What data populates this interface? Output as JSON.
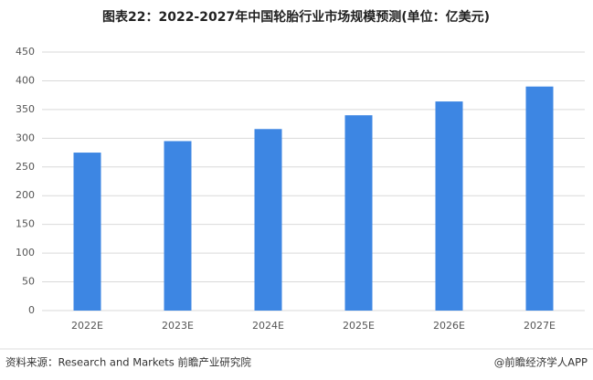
{
  "chart_data": {
    "type": "bar",
    "title": "图表22：2022-2027年中国轮胎行业市场规模预测(单位：亿美元)",
    "categories": [
      "2022E",
      "2023E",
      "2024E",
      "2025E",
      "2026E",
      "2027E"
    ],
    "values": [
      275,
      295,
      316,
      340,
      364,
      390
    ],
    "color": "#3d86e3",
    "ylim": [
      0,
      450
    ],
    "yticks": [
      0,
      50,
      100,
      150,
      200,
      250,
      300,
      350,
      400,
      450
    ],
    "grid": true,
    "source": "资料来源：Research and Markets 前瞻产业研究院",
    "credit": "@前瞻经济学人APP"
  }
}
